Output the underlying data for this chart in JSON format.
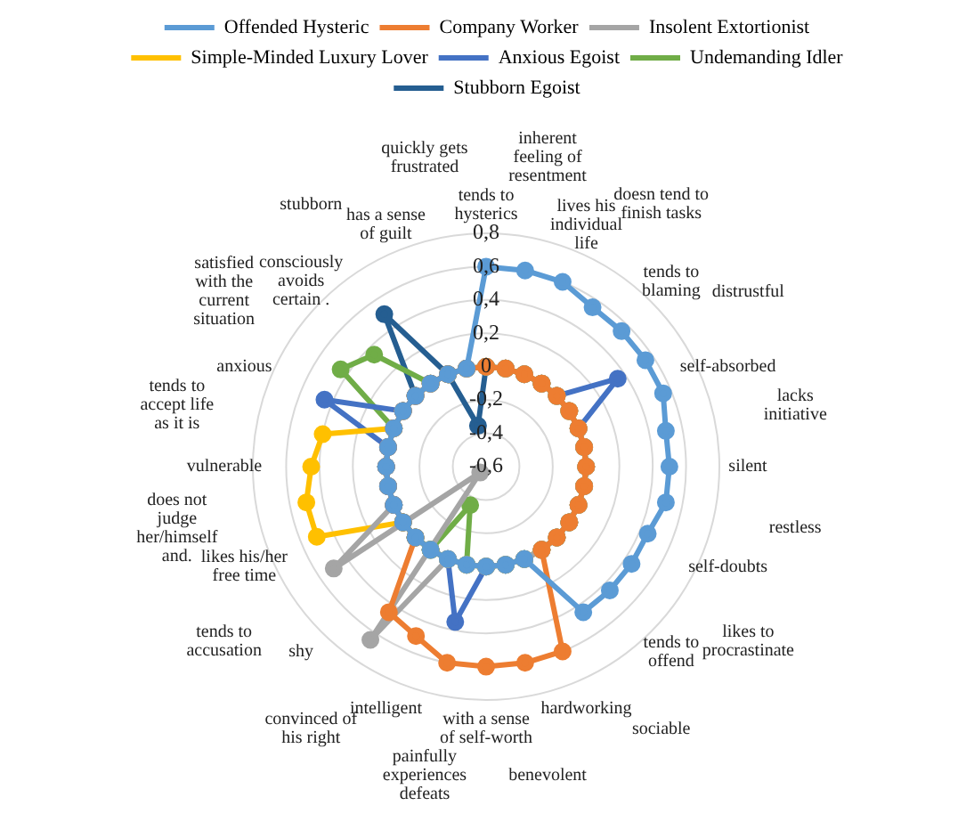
{
  "chart_data": {
    "type": "radar",
    "legend": "top",
    "marker": "circle",
    "grid": true,
    "categories": [
      "tends to hysterics",
      "inherent feeling of resentment",
      "lives his individual life",
      "doesn tend to finish tasks",
      "tends to blaming",
      "distrustful",
      "self-absorbed",
      "lacks initiative",
      "silent",
      "restless",
      "self-doubts",
      "likes to procrastinate",
      "tends to offend",
      "sociable",
      "hardworking",
      "benevolent",
      "with a sense of self-worth",
      "painfully experiences defeats",
      "intelligent",
      "convinced of his right",
      "shy",
      "tends to accusation",
      "likes his/her free time",
      "does not judge her/himself and.",
      "vulnerable",
      "tends to accept life as it is",
      "anxious",
      "satisfied with the current situation",
      "consciously avoids certain .",
      "stubborn",
      "has a sense of guilt",
      "quickly gets frustrated"
    ],
    "ylim": [
      -0.6,
      0.8
    ],
    "yticks": [
      {
        "value": -0.6,
        "label": "-0,6"
      },
      {
        "value": -0.4,
        "label": "-0,4"
      },
      {
        "value": -0.2,
        "label": "-0,2"
      },
      {
        "value": 0,
        "label": "0"
      },
      {
        "value": 0.2,
        "label": "0,2"
      },
      {
        "value": 0.4,
        "label": "0,4"
      },
      {
        "value": 0.6,
        "label": "0,6"
      },
      {
        "value": 0.8,
        "label": "0,8"
      }
    ],
    "series": [
      {
        "name": "Offended Hysteric",
        "color": "#5b9bd5",
        "values": [
          0.6,
          0.6,
          0.6,
          0.55,
          0.55,
          0.55,
          0.55,
          0.5,
          0.5,
          0.5,
          0.45,
          0.45,
          0.45,
          0.45,
          0,
          0,
          0,
          0,
          0,
          0,
          0,
          0,
          0,
          0,
          0,
          0,
          0,
          0,
          0,
          0,
          0,
          0
        ]
      },
      {
        "name": "Company Worker",
        "color": "#ed7d31",
        "values": [
          0,
          0,
          0,
          0,
          0,
          0,
          0,
          0,
          0,
          0,
          0,
          0,
          0,
          0,
          0.6,
          0.6,
          0.6,
          0.6,
          0.5,
          0.45,
          0,
          0,
          0,
          0,
          0,
          0,
          0,
          0,
          0,
          0,
          0,
          0
        ]
      },
      {
        "name": "Insolent Extortionist",
        "color": "#a5a5a5",
        "values": [
          0,
          0,
          0,
          0,
          0,
          0,
          0,
          0,
          0,
          0,
          0,
          0,
          0,
          0,
          0,
          0,
          0,
          0,
          0,
          0.65,
          -0.55,
          0.5,
          0,
          0,
          0,
          0,
          0,
          0,
          0,
          0,
          0,
          0
        ]
      },
      {
        "name": "Simple-Minded Luxury Lover",
        "color": "#ffc000",
        "values": [
          0,
          0,
          0,
          0,
          0,
          0,
          0,
          0,
          0,
          0,
          0,
          0,
          0,
          0,
          0,
          0,
          0,
          0,
          0,
          0,
          0,
          0,
          0.5,
          0.5,
          0.45,
          0.4,
          0,
          0,
          0,
          0,
          0,
          0
        ]
      },
      {
        "name": "Anxious Egoist",
        "color": "#4472c4",
        "values": [
          0,
          0,
          0,
          0,
          0,
          0.35,
          0,
          0,
          0,
          0,
          0,
          0,
          0,
          0,
          0,
          0,
          0,
          0.35,
          0,
          0,
          0,
          0,
          0,
          0,
          0,
          0,
          0.45,
          0,
          0,
          0,
          0,
          0
        ]
      },
      {
        "name": "Undemanding Idler",
        "color": "#70ad47",
        "values": [
          0,
          0,
          0,
          0,
          0,
          0,
          0,
          0,
          0,
          0,
          0,
          0,
          0,
          0,
          0,
          0,
          0,
          0,
          -0.35,
          0,
          0,
          0,
          0,
          0,
          0,
          0,
          0,
          0.45,
          0.35,
          0,
          0,
          0
        ]
      },
      {
        "name": "Stubborn Egoist",
        "color": "#255e91",
        "values": [
          0,
          0,
          0,
          0,
          0,
          0,
          0,
          0,
          0,
          0,
          0,
          0,
          0,
          0,
          0,
          0,
          0,
          0,
          0,
          0,
          0,
          0,
          0,
          0,
          0,
          0,
          0,
          0,
          0,
          0.5,
          0,
          -0.35
        ]
      }
    ]
  }
}
